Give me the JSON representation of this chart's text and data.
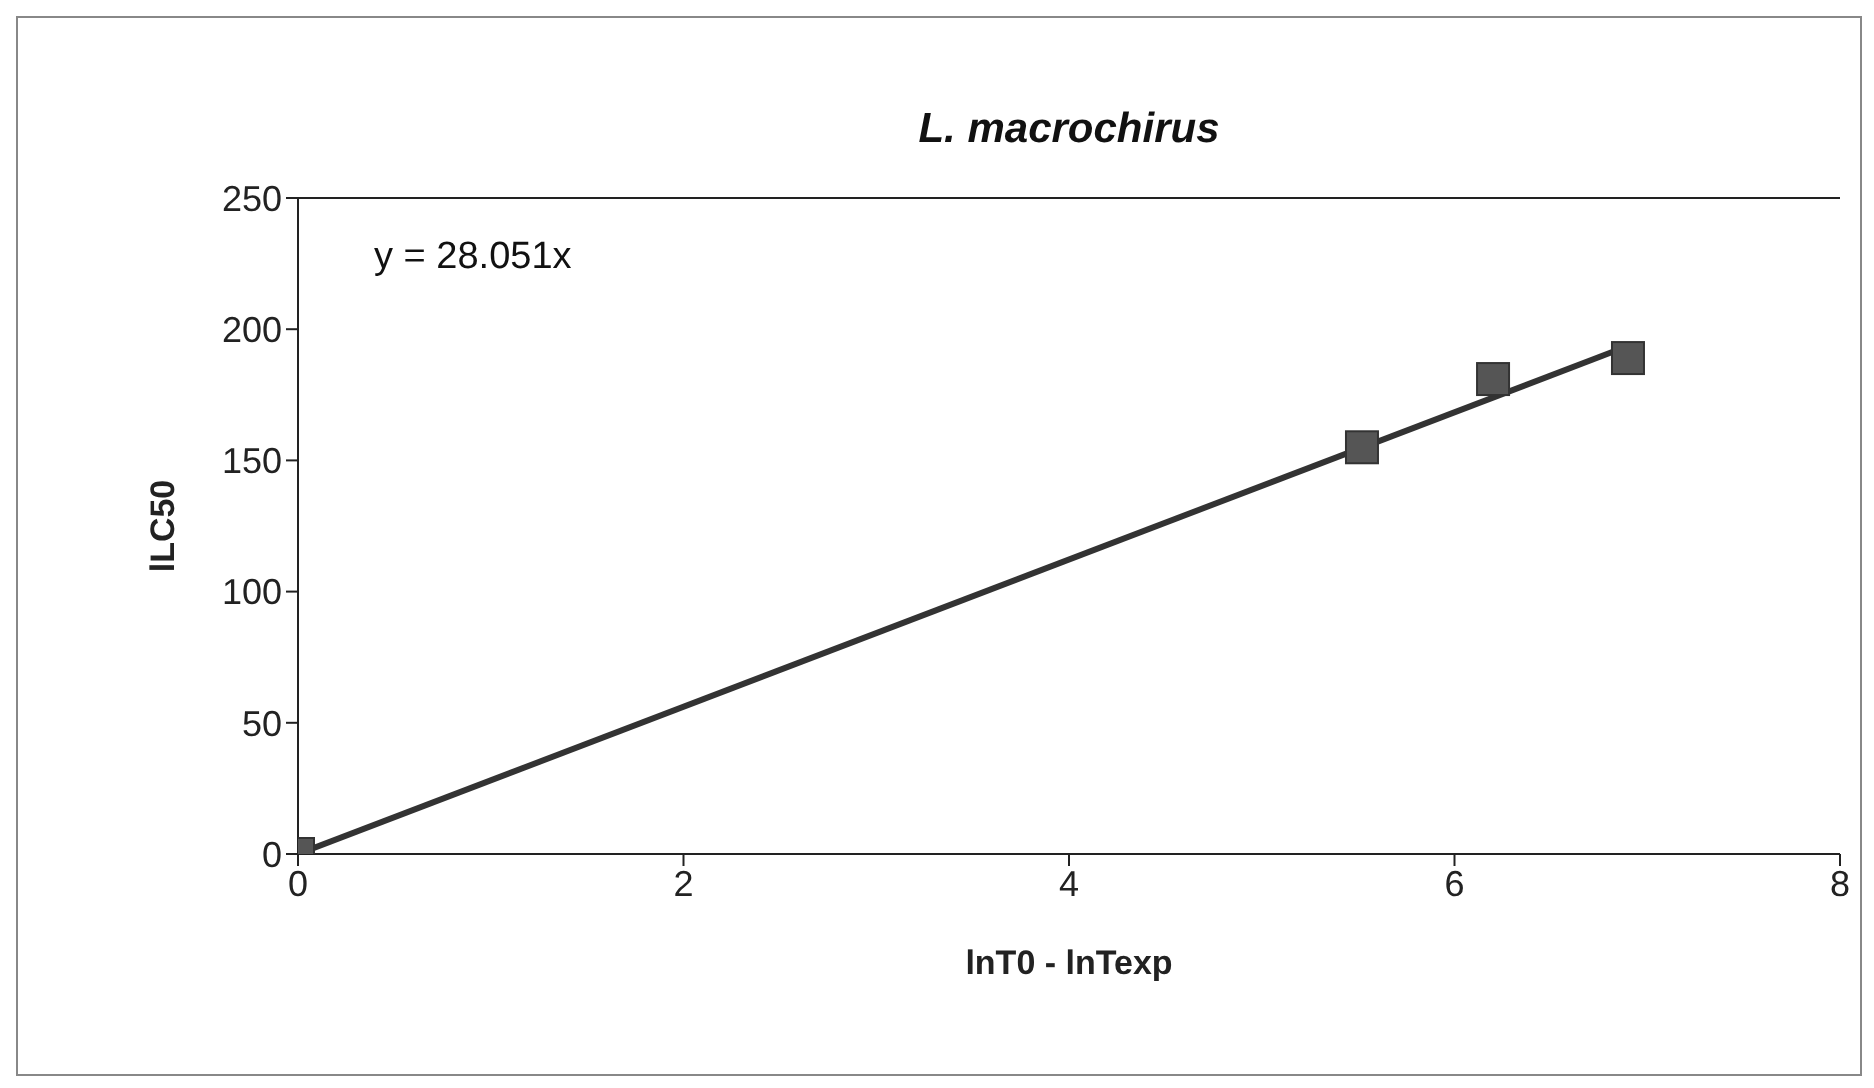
{
  "chart_data": {
    "type": "scatter",
    "title": "L. macrochirus",
    "xlabel": "lnT0 - lnTexp",
    "ylabel": "lLC50",
    "x": [
      0,
      5.52,
      6.2,
      6.9
    ],
    "series": [
      {
        "color": "#555555",
        "values": [
          0,
          155,
          181,
          189
        ],
        "marker": "square"
      },
      {
        "type": "line",
        "color": "#333333",
        "x": [
          0,
          6.9
        ],
        "values": [
          0,
          193.6
        ],
        "marker": "none"
      }
    ],
    "annotations": [
      "y = 28.051x"
    ],
    "xlim": [
      0,
      8
    ],
    "xticks": [
      0,
      2,
      4,
      6,
      8
    ],
    "ylim": [
      0,
      250
    ],
    "yticks": [
      0,
      50,
      100,
      150,
      200,
      250
    ]
  }
}
